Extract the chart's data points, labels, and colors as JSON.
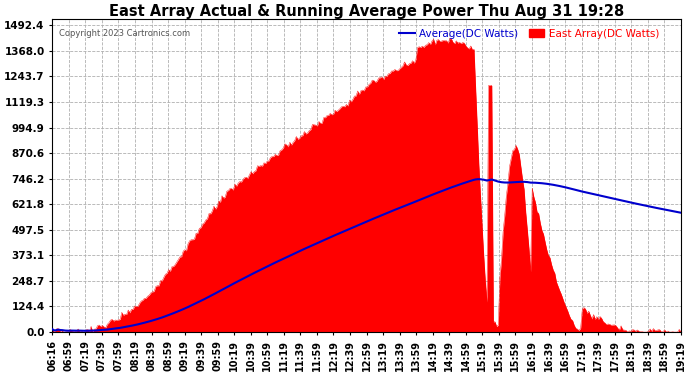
{
  "title": "East Array Actual & Running Average Power Thu Aug 31 19:28",
  "copyright": "Copyright 2023 Cartronics.com",
  "legend_avg": "Average(DC Watts)",
  "legend_east": "East Array(DC Watts)",
  "y_ticks": [
    0.0,
    124.4,
    248.7,
    373.1,
    497.5,
    621.8,
    746.2,
    870.6,
    994.9,
    1119.3,
    1243.7,
    1368.0,
    1492.4
  ],
  "ymax": 1492.4,
  "ymin": 0.0,
  "background_color": "#ffffff",
  "plot_bg_color": "#ffffff",
  "bar_color": "#ff0000",
  "avg_line_color": "#0000cd",
  "grid_color": "#b0b0b0",
  "title_color": "#000000",
  "x_labels": [
    "06:16",
    "06:59",
    "07:19",
    "07:39",
    "07:59",
    "08:19",
    "08:39",
    "08:59",
    "09:19",
    "09:39",
    "09:59",
    "10:19",
    "10:39",
    "10:59",
    "11:19",
    "11:39",
    "11:59",
    "12:19",
    "12:39",
    "12:59",
    "13:19",
    "13:39",
    "13:59",
    "14:19",
    "14:39",
    "14:59",
    "15:19",
    "15:39",
    "15:59",
    "16:19",
    "16:39",
    "16:59",
    "17:19",
    "17:39",
    "17:59",
    "18:19",
    "18:39",
    "18:59",
    "19:19"
  ]
}
